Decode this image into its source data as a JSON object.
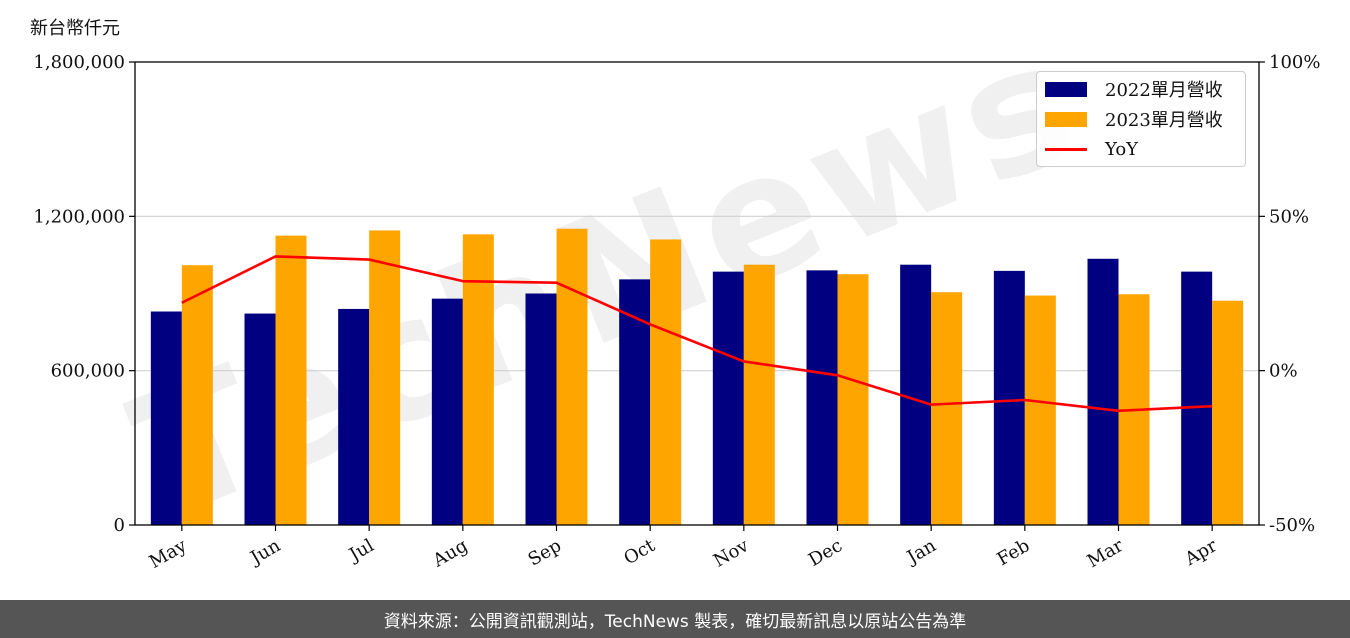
{
  "unit_label": "新台幣仟元",
  "watermark": "TechNews",
  "footer_text": "資料來源：公開資訊觀測站，TechNews 製表，確切最新訊息以原站公告為準",
  "colors": {
    "series_2022": "#000080",
    "series_2023": "#FFA500",
    "yoy": "#FF0000",
    "grid": "#d0d0d0",
    "footer_bg": "#555555"
  },
  "chart_data": {
    "type": "bar",
    "categories": [
      "May",
      "Jun",
      "Jul",
      "Aug",
      "Sep",
      "Oct",
      "Nov",
      "Dec",
      "Jan",
      "Feb",
      "Mar",
      "Apr"
    ],
    "series": [
      {
        "name": "2022單月營收",
        "type": "bar",
        "axis": "left",
        "values": [
          830000,
          822000,
          840000,
          880000,
          900000,
          955000,
          985000,
          990000,
          1012000,
          988000,
          1035000,
          985000
        ]
      },
      {
        "name": "2023單月營收",
        "type": "bar",
        "axis": "left",
        "values": [
          1010000,
          1125000,
          1145000,
          1130000,
          1152000,
          1110000,
          1012000,
          975000,
          905000,
          892000,
          897000,
          872000
        ]
      },
      {
        "name": "YoY",
        "type": "line",
        "axis": "right",
        "values": [
          22,
          37,
          36,
          29,
          28.5,
          15,
          3,
          -1.5,
          -11,
          -9.5,
          -13,
          -11.5
        ]
      }
    ],
    "y_left": {
      "min": 0,
      "max": 1800000,
      "ticks": [
        0,
        600000,
        1200000,
        1800000
      ],
      "tick_labels": [
        "0",
        "600,000",
        "1,200,000",
        "1,800,000"
      ]
    },
    "y_right": {
      "min": -50,
      "max": 100,
      "ticks": [
        -50,
        0,
        50,
        100
      ],
      "tick_labels": [
        "-50%",
        "0%",
        "50%",
        "100%"
      ]
    },
    "grid": "horizontal",
    "legend_position": "top-right"
  }
}
